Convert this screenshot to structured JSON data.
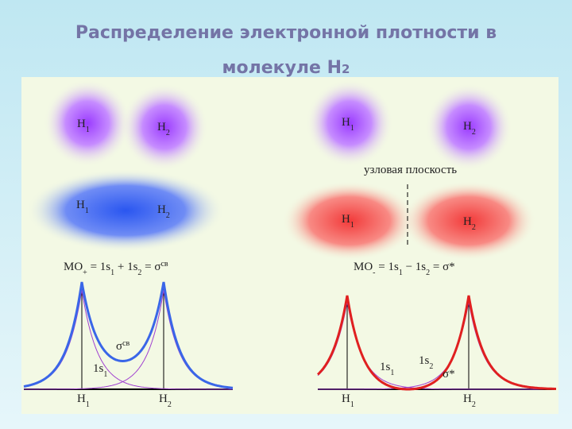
{
  "title": {
    "line1": "Распределение электронной плотности в",
    "line2": "молекуле H",
    "line2_sub": "2"
  },
  "labels": [
    [
      {
        "text": "H"
      },
      {
        "text": "1",
        "sub": true
      }
    ],
    [
      {
        "text": "H"
      },
      {
        "text": "2",
        "sub": true
      }
    ],
    [
      {
        "text": "H"
      },
      {
        "text": "1",
        "sub": true
      }
    ],
    [
      {
        "text": "H"
      },
      {
        "text": "2",
        "sub": true
      }
    ],
    [
      {
        "text": "узловая плоскость"
      }
    ],
    [
      {
        "text": "H"
      },
      {
        "text": "1",
        "sub": true
      }
    ],
    [
      {
        "text": "H"
      },
      {
        "text": "2",
        "sub": true
      }
    ],
    [
      {
        "text": "H"
      },
      {
        "text": "1",
        "sub": true
      }
    ],
    [
      {
        "text": "H"
      },
      {
        "text": "2",
        "sub": true
      }
    ],
    [
      {
        "text": "MO"
      },
      {
        "text": "+",
        "sub": true
      },
      {
        "text": " = 1s"
      },
      {
        "text": "1",
        "sub": true
      },
      {
        "text": " + 1s"
      },
      {
        "text": "2",
        "sub": true
      },
      {
        "text": " = σ"
      },
      {
        "text": "св",
        "sup": true
      }
    ],
    [
      {
        "text": "MO"
      },
      {
        "text": "-",
        "sub": true
      },
      {
        "text": " = 1s"
      },
      {
        "text": "1",
        "sub": true
      },
      {
        "text": " − 1s"
      },
      {
        "text": "2",
        "sub": true
      },
      {
        "text": " = σ*"
      }
    ],
    [
      {
        "text": "σ"
      },
      {
        "text": "св",
        "sup": true
      }
    ],
    [
      {
        "text": "1s"
      },
      {
        "text": "1",
        "sub": true
      }
    ],
    [
      {
        "text": "H"
      },
      {
        "text": "1",
        "sub": true
      }
    ],
    [
      {
        "text": "H"
      },
      {
        "text": "2",
        "sub": true
      }
    ],
    [
      {
        "text": "1s"
      },
      {
        "text": "1",
        "sub": true
      }
    ],
    [
      {
        "text": "1s"
      },
      {
        "text": "2",
        "sub": true
      }
    ],
    [
      {
        "text": "σ*"
      }
    ],
    [
      {
        "text": "H"
      },
      {
        "text": "1",
        "sub": true
      }
    ],
    [
      {
        "text": "H"
      },
      {
        "text": "2",
        "sub": true
      }
    ]
  ]
}
